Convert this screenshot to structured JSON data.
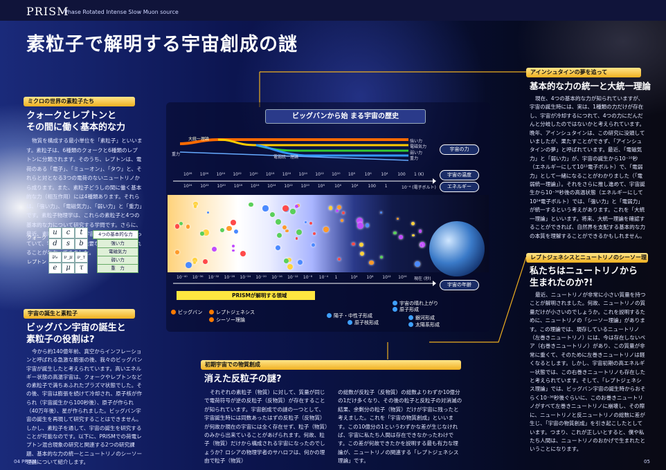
{
  "brand": {
    "name": "PRISM",
    "subtitle": "Phase Rotated Intense Slow Muon source"
  },
  "page_title": "素粒子で解明する宇宙創成の謎",
  "left": {
    "section1": {
      "label": "ミクロの世界の素粒子たち",
      "heading": [
        "クォークとレプトンと",
        "その間に働く基本的な力"
      ],
      "body": "物質を構成する最小単位を「素粒子」といいます。素粒子は、6種類のクォークと6種類のレプトンに分類されます。そのうち、レプトンは、電荷のある「電子」、「ミューオン」、「タウ」と、それらと対となる3つの電荷のないニュートリノから成ります。また、素粒子どうしの間に働く基本的な力（相互作用）には4種類あります。それらは、「強い力」、「電磁気力」、「弱い力」と「重力」です。素粒子物理学は、これらの素粒子と4つの基本的な力について研究する学問です。さらに、最近、素粒子が私たちの宇宙の誕生に深く関わっていて、宇宙を研究する重要な手段をうえてくれることがわかってきました。"
    },
    "table": {
      "quark_label": "クォーク",
      "lepton_label": "レプトン",
      "quarks": [
        "u",
        "c",
        "t",
        "d",
        "s",
        "b"
      ],
      "leptons": [
        "νₑ",
        "ν_μ",
        "ν_τ",
        "e",
        "μ",
        "τ"
      ],
      "forces_header": "4つの基本的な力",
      "forces": [
        "強い力",
        "電磁気力",
        "弱い力",
        "重　力"
      ]
    },
    "section2": {
      "label": "宇宙の誕生と素粒子",
      "heading": [
        "ビッグバン宇宙の誕生と",
        "素粒子の役割は?"
      ],
      "body": "今から約140億年前、真空からインフレーションと呼ばれる急激な膨張の後、我々のビッグバン宇宙が誕生したと考えられています。高いエネルギー状態の高温宇宙は、クォークやレプトンなどの素粒子で満ちあふれたプラズマ状態でした。その後、宇宙は膨張を続けて冷却され、原子核が作られ（宇宙誕生から100秒後）、原子が作られ（40万年後）、星が作られました。ビッグバン宇宙の誕生を再現して研究することはできません。しかし、素粒子を通して、宇宙の誕生を研究することが可能なのです。以下に、PRISMでの荷電レプトン混合現象の研究と関連する2つの研究課題、基本的な力の統一とニュートリノのシーソー理論について紹介します。"
    }
  },
  "chart": {
    "title": "ビッグバンから始 まる宇宙の歴史",
    "force_lines": [
      "大統一理論",
      "重力",
      "電弱統一理論"
    ],
    "force_names": [
      "強い力",
      "電磁気力",
      "弱い力",
      "重力"
    ],
    "force_label": "宇宙の力",
    "temp_label": "宇宙の温度",
    "energy_label": "エネルギー",
    "temp_ticks": [
      "10²⁸",
      "10²⁶",
      "10²⁴",
      "10²²",
      "10²⁰",
      "10¹⁸",
      "10¹⁶",
      "10¹⁴",
      "10¹²",
      "10¹⁰",
      "10⁸",
      "10⁶",
      "10⁴",
      "100",
      "1 (K)"
    ],
    "energy_ticks": [
      "10²⁴",
      "10²²",
      "10²⁰",
      "10¹⁸",
      "10¹⁶",
      "10¹⁴",
      "10¹²",
      "10¹⁰",
      "10⁸",
      "10⁶",
      "10⁴",
      "100",
      "1",
      "10⁻⁴ (電子ボルト)"
    ],
    "age_label": "宇宙の年齢",
    "age_ticks": [
      "10⁻⁴⁰",
      "10⁻³⁶",
      "10⁻³²",
      "10⁻²⁸",
      "10⁻²⁴",
      "10⁻²⁰",
      "10⁻¹⁶",
      "10⁻¹²",
      "10⁻⁸",
      "10⁻⁴",
      "1",
      "10⁴",
      "10⁸",
      "10¹²",
      "10¹⁶",
      "現在 (秒)"
    ],
    "prism_label": "PRISMが解明する領域",
    "events_left": [
      "ビッグバン",
      "レプトジェネシス",
      "シーソー理論"
    ],
    "events_mid": [
      "陽子・中性子形成",
      "原子核形成"
    ],
    "events_right": [
      "宇宙の晴れ上がり",
      "原子形成",
      "銀河形成",
      "太陽系形成"
    ]
  },
  "middle": {
    "label": "初期宇宙での物質創成",
    "heading": "消えた反粒子の謎?",
    "body1": "それぞれの素粒子（物質）に対して、質量が同じで電荷符号が逆の反粒子（反物質）が存在することが知られています。宇宙創成での謎の一つとして、宇宙誕生時には同数あったはずの反粒子（反物質）が何故か現在の宇宙には全く存在せず、粒子（物質）のみから出来ていることがあげられます。何故、粒子（物質）だけから構成される宇宙になったのでしょうか？ロシアの物理学者のサハロフは、何かの理由で粒子（物質）",
    "body2": "の総数が反粒子（反物質）の総数よりわずか10億分の1だけ多くなり、その後の粒子と反粒子の対消滅の結果、余剰分の粒子（物質）だけが宇宙に残ったと考えました。これを「宇宙の物質創成」といいます。この10億分の1というわずかな差が生じなければ、宇宙に私たち人間は存在できなかったわけです。この差が何故できたかを説明する最も有力な理論が、ニュートリノの関連する「レプトジェネシス理論」です。"
  },
  "right": {
    "section1": {
      "label": "アインシュタインの夢を追って",
      "heading": "基本的な力の統一と大統一理論",
      "body": "現在、4つの基本的な力が知られていますが、宇宙の誕生時には、実は、1種類の力だけが存在し、宇宙が冷却するにつれて、4つの力にだんだんと分岐したのではないかと考えられています。晩年、アインシュタインは、この研究に没頭していましたが、果たすことができず、「アインシュタインの夢」と呼ばれています。最近、「電磁気力」と「弱い力」が、宇宙の誕生から10⁻¹⁰秒（エネルギーにして10¹¹電子ボルト）で、「電弱力」として一緒になることがわかりました（「電弱統一理論」）。それをさらに推し進めて、宇宙誕生から10⁻³⁶秒後の高温状態（エネルギーにして10²⁴電子ボルト）では、「強い力」と「電弱力」が統一するという考えがあります。これを「大統一理論」といいます。将来、大統一理論を確認することができれば、自然界を支配する基本的な力の本質を理解することができるかもしれません。"
    },
    "section2": {
      "label": "レプトジェネシスとニュートリノのシーソー理論",
      "heading": [
        "私たちはニュートリノから",
        "生まれたのか?!"
      ],
      "body": "最近、ニュートリノが非常に小さい質量を持つことが解明されました。何故、ニュートリノの質量だけが小さいのでしょうか。これを説明するために、ニュートリノの「シーソー理論」があります。この理論では、現存しているニュートリノ（左巻きニュートリノ）には、今は存在しないペア（右巻きニュートリノ）があり、この質量が非常に重くて、そのために左巻きニュートリノは軽くなるとします。しかし、宇宙初期の高エネルギー状態では、この右巻きニュートリノも存在したと考えられています。そして、「レプトジェネシス理論」では、ビッグバン宇宙の誕生時からおそらく10⁻³⁶秒後ぐらいに、このお巻きニュートリノがすべて左巻きニュートリノに崩壊し、その際に、ニュートリノと反ニュートリノの総数に差が生じ、「宇宙の物質創成」を引き起こしたとしています。つまり、これが正しいとすると、僕や私たち人間は、ニュートリノのおかげで生まれたということになります。"
    }
  },
  "footer": {
    "left": "04 PRISM",
    "right": "05"
  },
  "colors": {
    "accent": "#f0b020",
    "bg": "#0c1550"
  }
}
